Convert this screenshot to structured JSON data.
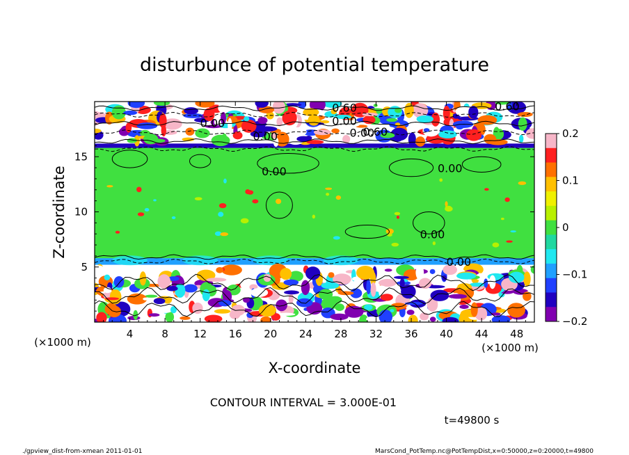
{
  "chart_data": {
    "type": "heatmap",
    "title": "disturbunce of potential temperature",
    "xlabel": "X-coordinate",
    "ylabel": "Z-coordinate",
    "x_unit": "(×1000 m)",
    "y_unit": "(×1000 m)",
    "xlim": [
      0,
      50
    ],
    "ylim": [
      0,
      20
    ],
    "x_ticks": [
      "4",
      "8",
      "12",
      "16",
      "20",
      "24",
      "28",
      "32",
      "36",
      "40",
      "44",
      "48"
    ],
    "y_ticks": [
      "5",
      "10",
      "15"
    ],
    "colorbar": {
      "ticks": [
        "0.2",
        "0.1",
        "0",
        "−0.1",
        "−0.2"
      ],
      "min": -0.2,
      "max": 0.2,
      "colors": [
        "#f7b6c8",
        "#ff2020",
        "#ff7000",
        "#ffc000",
        "#f0f000",
        "#b8f000",
        "#40e040",
        "#20d8a0",
        "#20e8f0",
        "#20a0ff",
        "#2040ff",
        "#2000c0",
        "#8000b0"
      ]
    },
    "contour_label": "0.00",
    "contour_label_b": "0.60",
    "bands": [
      {
        "z0": 0,
        "z1": 5.2,
        "v": "mixed"
      },
      {
        "z0": 5.2,
        "z1": 5.8,
        "v": -0.08
      },
      {
        "z0": 5.8,
        "z1": 15.8,
        "v": 0.0
      },
      {
        "z0": 15.8,
        "z1": 16.2,
        "v": -0.15
      },
      {
        "z0": 16.2,
        "z1": 20,
        "v": "mixed"
      }
    ]
  },
  "contour_interval": "CONTOUR INTERVAL = 3.000E-01",
  "time_label": "t=49800 s",
  "footer_left": "./gpview_dist-from-xmean  2011-01-01",
  "footer_right": "MarsCond_PotTemp.nc@PotTempDist,x=0:50000,z=0:20000,t=49800"
}
